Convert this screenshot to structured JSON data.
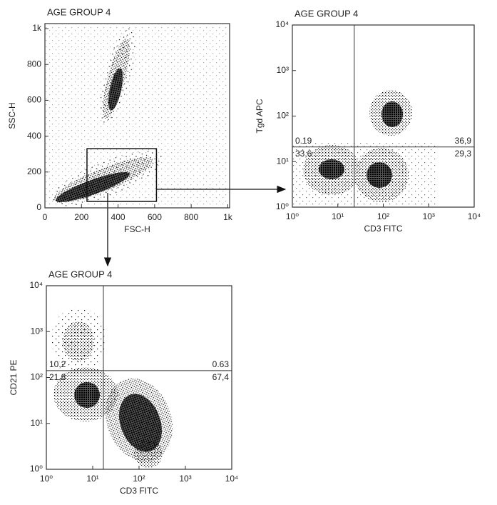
{
  "chart_data": [
    {
      "type": "scatter",
      "title": "AGE GROUP 4",
      "xlabel": "FSC-H",
      "ylabel": "SSC-H",
      "log": false,
      "xlim": [
        0,
        1010
      ],
      "ylim": [
        0,
        1028
      ],
      "xticks": [
        0,
        200,
        400,
        600,
        800,
        {
          "value": 1000,
          "label": "1k"
        }
      ],
      "yticks": [
        0,
        200,
        400,
        600,
        800,
        {
          "value": 1000,
          "label": "1k"
        }
      ],
      "gate": {
        "x": [
          230,
          610
        ],
        "y": [
          36,
          330
        ]
      }
    },
    {
      "type": "scatter",
      "title": "AGE GROUP 4",
      "xlabel": "CD3 FITC",
      "ylabel": "Tgd APC",
      "log": true,
      "xlim": [
        1,
        10000
      ],
      "ylim": [
        1,
        10000
      ],
      "xticks": [
        {
          "value": 1,
          "label": "10⁰"
        },
        {
          "value": 10,
          "label": "10¹"
        },
        {
          "value": 100,
          "label": "10²"
        },
        {
          "value": 1000,
          "label": "10³"
        },
        {
          "value": 10000,
          "label": "10⁴"
        }
      ],
      "yticks": [
        {
          "value": 1,
          "label": "10⁰"
        },
        {
          "value": 10,
          "label": "10¹"
        },
        {
          "value": 100,
          "label": "10²"
        },
        {
          "value": 1000,
          "label": "10³"
        },
        {
          "value": 10000,
          "label": "10⁴"
        }
      ],
      "quadrant_gate": {
        "x": 23,
        "y": 21
      },
      "quadrants": {
        "values": [
          0.19,
          36.9,
          33.6,
          29.3
        ],
        "value_labels": [
          "0.19",
          "36,9",
          "33,6",
          "29,3"
        ]
      }
    },
    {
      "type": "scatter",
      "title": "AGE GROUP 4",
      "xlabel": "CD3 FITC",
      "ylabel": "CD21 PE",
      "log": true,
      "xlim": [
        1,
        10000
      ],
      "ylim": [
        1,
        10000
      ],
      "xticks": [
        {
          "value": 1,
          "label": "10⁰"
        },
        {
          "value": 10,
          "label": "10¹"
        },
        {
          "value": 100,
          "label": "10²"
        },
        {
          "value": 1000,
          "label": "10³"
        },
        {
          "value": 10000,
          "label": "10⁴"
        }
      ],
      "yticks": [
        {
          "value": 1,
          "label": "10⁰"
        },
        {
          "value": 10,
          "label": "10¹"
        },
        {
          "value": 100,
          "label": "10²"
        },
        {
          "value": 1000,
          "label": "10³"
        },
        {
          "value": 10000,
          "label": "10⁴"
        }
      ],
      "quadrant_gate": {
        "x": 17,
        "y": 141
      },
      "quadrants": {
        "values": [
          10.2,
          0.63,
          21.8,
          67.4
        ],
        "value_labels": [
          "10,2",
          "0.63",
          "21,8",
          "67,4"
        ]
      }
    }
  ]
}
